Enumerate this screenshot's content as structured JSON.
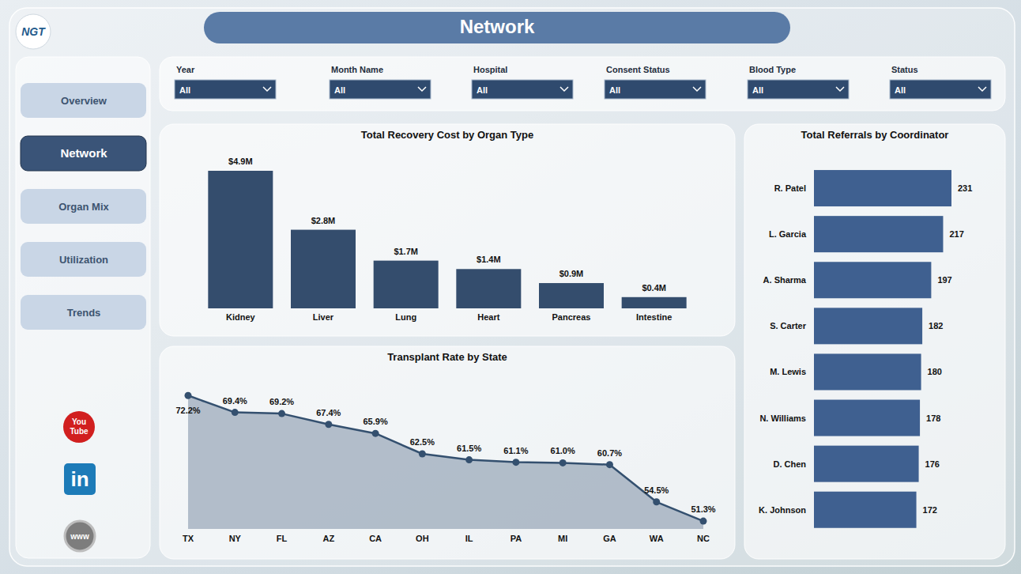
{
  "header": {
    "title": "Network",
    "logo": "NGT"
  },
  "nav": [
    {
      "label": "Overview",
      "active": false
    },
    {
      "label": "Network",
      "active": true
    },
    {
      "label": "Organ Mix",
      "active": false
    },
    {
      "label": "Utilization",
      "active": false
    },
    {
      "label": "Trends",
      "active": false
    }
  ],
  "social": [
    "You Tube",
    "in",
    "www"
  ],
  "filters": [
    {
      "label": "Year",
      "value": "All"
    },
    {
      "label": "Month Name",
      "value": "All"
    },
    {
      "label": "Hospital",
      "value": "All"
    },
    {
      "label": "Consent Status",
      "value": "All"
    },
    {
      "label": "Blood Type",
      "value": "All"
    },
    {
      "label": "Status",
      "value": "All"
    }
  ],
  "chart_data": [
    {
      "type": "bar",
      "title": "Total Recovery Cost by Organ Type",
      "categories": [
        "Kidney",
        "Liver",
        "Lung",
        "Heart",
        "Pancreas",
        "Intestine"
      ],
      "values": [
        4900000,
        2800000,
        1700000,
        1400000,
        900000,
        400000
      ],
      "value_labels": [
        "$4.9M",
        "$2.8M",
        "$1.7M",
        "$1.4M",
        "$0.9M",
        "$0.4M"
      ],
      "color": "#344d6d",
      "ylim": [
        0,
        4900000
      ],
      "data_labels": true,
      "tick_labels": "x",
      "grid": false
    },
    {
      "type": "bar",
      "orientation": "horizontal",
      "title": "Total Referrals by Coordinator",
      "categories": [
        "R. Patel",
        "L. Garcia",
        "A. Sharma",
        "S. Carter",
        "M. Lewis",
        "N. Williams",
        "D. Chen",
        "K. Johnson"
      ],
      "values": [
        231,
        217,
        197,
        182,
        180,
        178,
        176,
        172
      ],
      "color": "#3f6090",
      "xlim": [
        0,
        231
      ],
      "data_labels": true,
      "tick_labels": "y",
      "grid": false
    },
    {
      "type": "area",
      "title": "Transplant Rate by State",
      "categories": [
        "TX",
        "NY",
        "FL",
        "AZ",
        "CA",
        "OH",
        "IL",
        "PA",
        "MI",
        "GA",
        "WA",
        "NC"
      ],
      "values": [
        72.2,
        69.4,
        69.2,
        67.4,
        65.9,
        62.5,
        61.5,
        61.1,
        61.0,
        60.7,
        54.5,
        51.3
      ],
      "value_labels": [
        "72.2%",
        "69.4%",
        "69.2%",
        "67.4%",
        "65.9%",
        "62.5%",
        "61.5%",
        "61.1%",
        "61.0%",
        "60.7%",
        "54.5%",
        "51.3%"
      ],
      "color": "#34506f",
      "marker": "circle",
      "ylim": [
        50,
        75
      ],
      "data_labels": true,
      "tick_labels": "x",
      "grid": false
    }
  ]
}
